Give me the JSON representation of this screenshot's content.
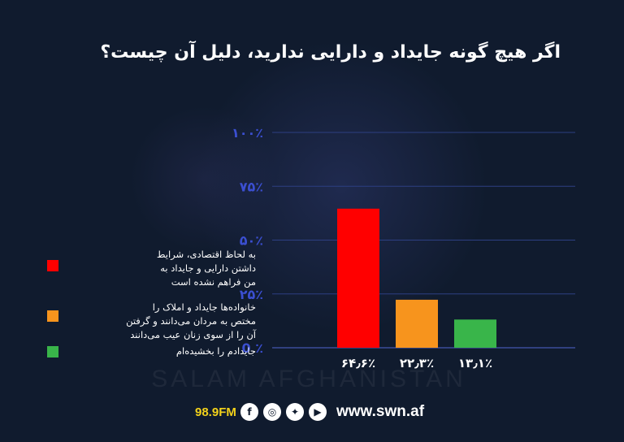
{
  "title": "اگر هیچ گونه جایداد و دارایی ندارید، دلیل آن چیست؟",
  "chart_data": {
    "type": "bar",
    "categories": [
      "به لحاظ اقتصادی، شرایط داشتن دارایی و جایداد به من فراهم نشده است",
      "خانواده‌ها جایداد و املاک را مختص به مردان می‌دانند و گرفتن آن را از سوی زنان عیب می‌دانند",
      "جایدادم را بخشیده‌ام"
    ],
    "values": [
      64.6,
      22.3,
      13.1
    ],
    "value_labels": [
      "۶۴٫۶٪",
      "۲۲٫۳٪",
      "۱۳٫۱٪"
    ],
    "colors": [
      "#ff0000",
      "#f7941d",
      "#39b54a"
    ],
    "ylim": [
      0,
      100
    ],
    "yticks": [
      0,
      25,
      50,
      75,
      100
    ],
    "ytick_labels": [
      "0 ٪",
      "۲۵٪",
      "۵۰٪",
      "۷۵٪",
      "۱۰۰٪"
    ],
    "grid": true,
    "legend_placement": "left"
  },
  "legend_lines": [
    [
      "به لحاظ اقتصادی، شرایط",
      "داشتن دارایی و جایداد به",
      "من فراهم نشده است"
    ],
    [
      "خانواده‌ها جایداد و املاک را",
      "مختص به مردان می‌دانند و گرفتن",
      "آن را از سوی زنان عیب می‌دانند"
    ],
    [
      "جایدادم را بخشیده‌ام"
    ]
  ],
  "watermark": "SALAM AFGHANISTAN",
  "footer": {
    "frequency": "98.9FM",
    "social_icons": [
      "facebook-icon",
      "instagram-icon",
      "twitter-icon",
      "youtube-icon"
    ],
    "website": "www.swn.af"
  },
  "colors": {
    "background": "#101b2e",
    "gridline": "#2d3f82",
    "tick_label": "#3b4fd1",
    "footer_frequency": "#f3d21a"
  }
}
